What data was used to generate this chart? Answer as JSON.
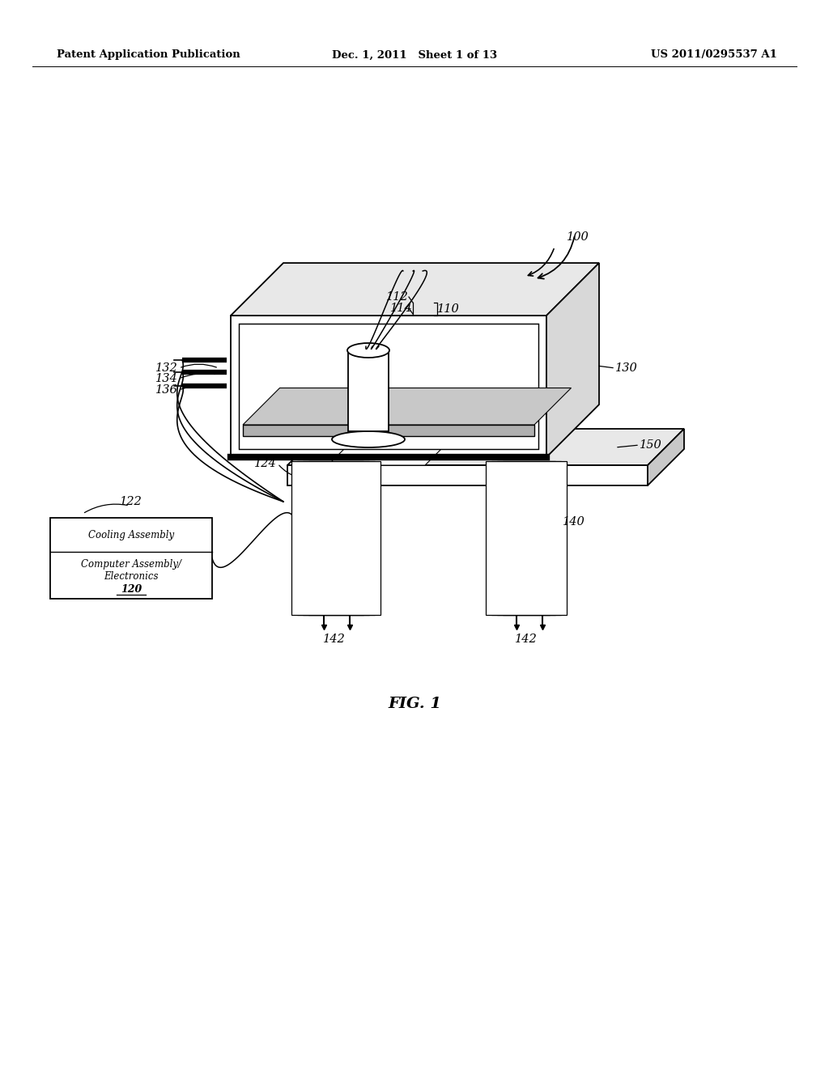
{
  "bg_color": "#ffffff",
  "header_left": "Patent Application Publication",
  "header_center": "Dec. 1, 2011   Sheet 1 of 13",
  "header_right": "US 2011/0295537 A1",
  "fig_label": "FIG. 1",
  "lw_main": 1.3,
  "lw_thick": 4.5,
  "fs_label": 10.5,
  "fs_header": 9.5
}
